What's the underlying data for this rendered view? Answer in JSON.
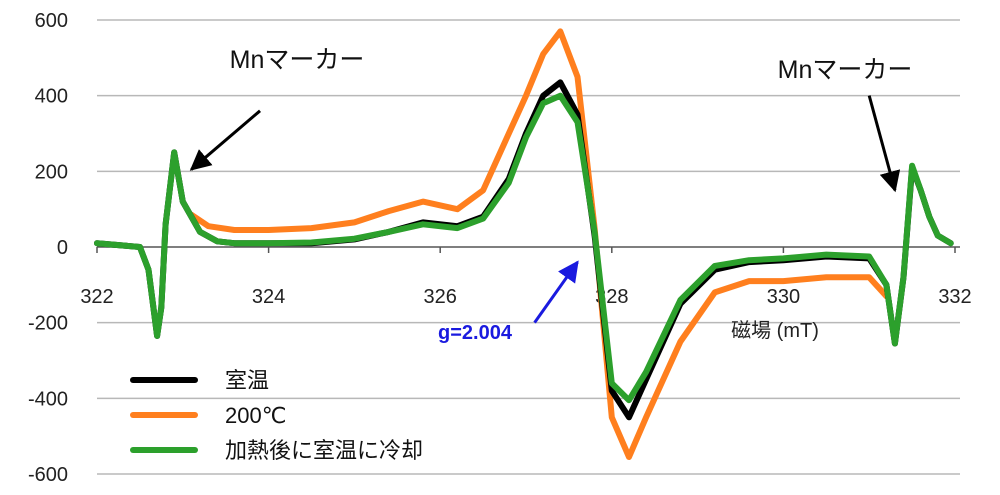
{
  "chart_data": {
    "type": "line",
    "xlabel": "磁場  (mT)",
    "ylabel": "",
    "xlim": [
      322,
      332
    ],
    "ylim": [
      -600,
      600
    ],
    "xticks": [
      322,
      324,
      326,
      328,
      330,
      332
    ],
    "yticks": [
      -600,
      -400,
      -200,
      0,
      200,
      400,
      600
    ],
    "xtick_labels": [
      "322",
      "324",
      "326",
      "328",
      "330",
      "332"
    ],
    "ytick_labels": [
      "-600",
      "-400",
      "-200",
      "0",
      "200",
      "400",
      "600"
    ],
    "grid": "horizontal",
    "legend_position": "bottom-left",
    "series": [
      {
        "name": "室温",
        "color": "#000000",
        "x": [
          322.0,
          322.5,
          322.6,
          322.7,
          322.75,
          322.8,
          322.9,
          323.0,
          323.2,
          323.4,
          323.6,
          324.0,
          324.5,
          325.0,
          325.4,
          325.8,
          326.2,
          326.5,
          326.8,
          327.0,
          327.2,
          327.4,
          327.6,
          327.8,
          328.0,
          328.2,
          328.4,
          328.8,
          329.2,
          329.6,
          330.0,
          330.5,
          331.0,
          331.2,
          331.3,
          331.4,
          331.5,
          331.6,
          331.7,
          331.8,
          331.95
        ],
        "y": [
          10,
          0,
          -60,
          -235,
          -160,
          60,
          250,
          120,
          40,
          15,
          10,
          10,
          10,
          20,
          40,
          65,
          55,
          80,
          180,
          300,
          400,
          435,
          350,
          30,
          -380,
          -450,
          -350,
          -150,
          -60,
          -40,
          -35,
          -25,
          -30,
          -100,
          -255,
          -80,
          210,
          150,
          80,
          30,
          10
        ]
      },
      {
        "name": "200℃",
        "color": "#ff7f1e",
        "x": [
          323.1,
          323.3,
          323.6,
          324.0,
          324.5,
          325.0,
          325.4,
          325.8,
          326.2,
          326.5,
          326.8,
          327.0,
          327.2,
          327.4,
          327.6,
          327.8,
          328.0,
          328.2,
          328.4,
          328.8,
          329.2,
          329.6,
          330.0,
          330.5,
          331.0,
          331.2
        ],
        "y": [
          85,
          55,
          45,
          45,
          50,
          65,
          95,
          120,
          100,
          150,
          300,
          400,
          510,
          570,
          450,
          50,
          -450,
          -555,
          -450,
          -250,
          -120,
          -90,
          -90,
          -80,
          -80,
          -130
        ]
      },
      {
        "name": "加熱後に室温に冷却",
        "color": "#2ca02c",
        "x": [
          322.0,
          322.5,
          322.6,
          322.7,
          322.75,
          322.8,
          322.9,
          323.0,
          323.2,
          323.4,
          323.6,
          324.0,
          324.5,
          325.0,
          325.4,
          325.8,
          326.2,
          326.5,
          326.8,
          327.0,
          327.2,
          327.4,
          327.6,
          327.8,
          328.0,
          328.2,
          328.4,
          328.8,
          329.2,
          329.6,
          330.0,
          330.5,
          331.0,
          331.2,
          331.3,
          331.4,
          331.5,
          331.6,
          331.7,
          331.8,
          331.95
        ],
        "y": [
          10,
          0,
          -60,
          -235,
          -160,
          60,
          250,
          120,
          40,
          15,
          10,
          10,
          12,
          22,
          40,
          60,
          50,
          75,
          170,
          290,
          380,
          400,
          330,
          40,
          -360,
          -405,
          -330,
          -140,
          -50,
          -35,
          -30,
          -20,
          -25,
          -100,
          -255,
          -80,
          215,
          150,
          80,
          30,
          10
        ]
      }
    ],
    "annotations": [
      {
        "text": "Mnマーカー",
        "from": [
          323.9,
          360
        ],
        "to": [
          323.1,
          205
        ]
      },
      {
        "text": "Mnマーカー",
        "from": [
          331.0,
          400
        ],
        "to": [
          331.3,
          150
        ]
      },
      {
        "text": "g=2.004",
        "from": [
          327.1,
          -200
        ],
        "to": [
          327.6,
          -40
        ]
      }
    ]
  }
}
